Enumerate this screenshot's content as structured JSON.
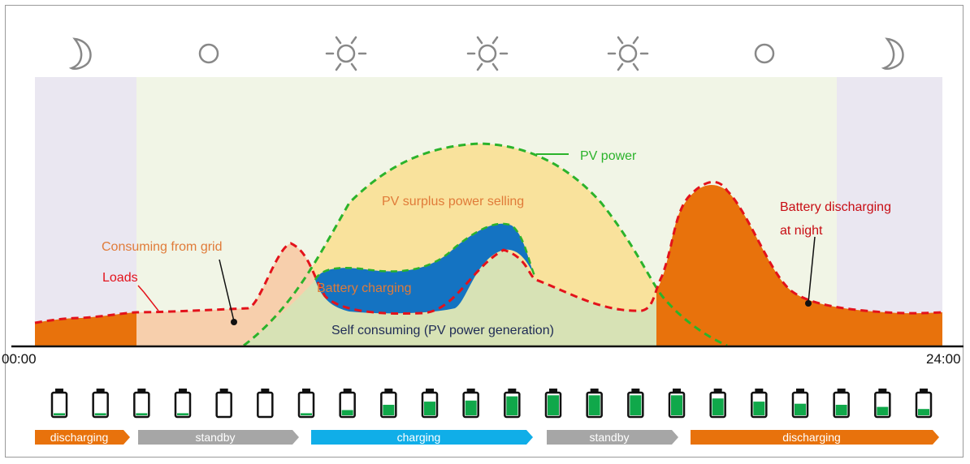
{
  "time_axis": {
    "start": "00:00",
    "end": "24:00"
  },
  "sky_icons": [
    "moon-icon",
    "cloud-icon",
    "sun-icon",
    "sun-icon",
    "sun-icon",
    "cloud-icon",
    "moon-icon"
  ],
  "labels": {
    "pv_power": "PV power",
    "pv_surplus": "PV surplus power selling",
    "consuming_grid": "Consuming from grid",
    "loads": "Loads",
    "battery_charging": "Battery charging",
    "self_consuming": "Self consuming (PV power generation)",
    "battery_night_1": "Battery discharging",
    "battery_night_2": "at night"
  },
  "battery_levels": [
    0.1,
    0.1,
    0.1,
    0.1,
    0.0,
    0.0,
    0.1,
    0.25,
    0.5,
    0.65,
    0.7,
    0.9,
    0.95,
    0.95,
    0.95,
    0.95,
    0.8,
    0.65,
    0.55,
    0.5,
    0.4,
    0.3
  ],
  "phases": [
    {
      "label": "discharging",
      "color": "#e8720c"
    },
    {
      "label": "standby",
      "color": "#a6a6a6"
    },
    {
      "label": "charging",
      "color": "#10aee8"
    },
    {
      "label": "standby",
      "color": "#a6a6a6"
    },
    {
      "label": "discharging",
      "color": "#e8720c"
    }
  ],
  "colors": {
    "night": "#eae7f1",
    "day": "#f1f5e6",
    "pv_surplus": "#f9e29c",
    "self_consuming": "#d7e2b5",
    "battery_charging": "#1473c2",
    "battery_discharging": "#e8720c",
    "grid": "#f7cfac",
    "pv_line": "#2bb32b",
    "load_line": "#e3121b",
    "battery_fill": "#10a84a"
  }
}
